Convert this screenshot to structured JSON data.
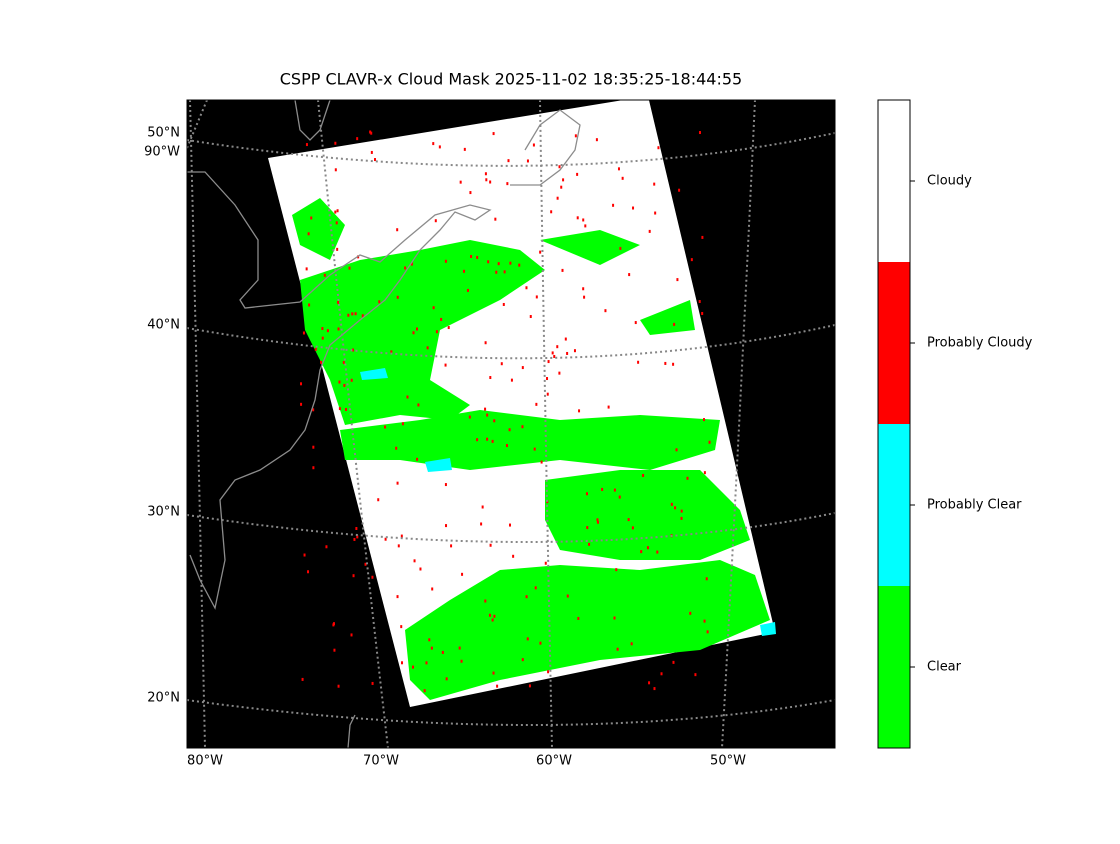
{
  "title": "CSPP CLAVR-x Cloud Mask 2025-11-02 18:35:25-18:44:55",
  "latitude_labels": [
    "50°N",
    "40°N",
    "30°N",
    "20°N"
  ],
  "longitude_labels": [
    "90°W",
    "80°W",
    "70°W",
    "60°W",
    "50°W"
  ],
  "legend": {
    "classes": [
      {
        "label": "Cloudy",
        "color": "#ffffff"
      },
      {
        "label": "Probably Cloudy",
        "color": "#ff0000"
      },
      {
        "label": "Probably Clear",
        "color": "#00ffff"
      },
      {
        "label": "Clear",
        "color": "#00ff00"
      }
    ]
  }
}
